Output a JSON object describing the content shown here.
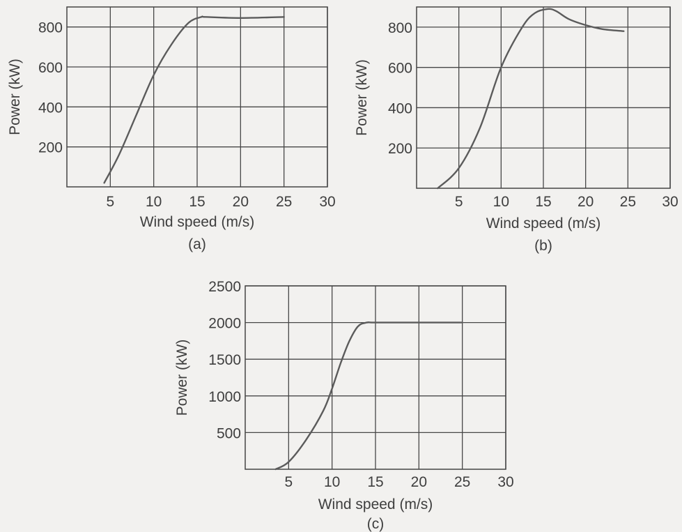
{
  "chart_data": [
    {
      "type": "line",
      "caption": "(a)",
      "xlabel": "Wind speed (m/s)",
      "ylabel": "Power (kW)",
      "xlim": [
        0,
        30
      ],
      "ylim": [
        0,
        900
      ],
      "xticks": [
        5,
        10,
        15,
        20,
        25,
        30
      ],
      "yticks": [
        200,
        400,
        600,
        800
      ],
      "grid": true,
      "series": [
        {
          "x": [
            4.3,
            6,
            8,
            10,
            12,
            14,
            15.5,
            16,
            20,
            25
          ],
          "y": [
            20,
            160,
            360,
            560,
            710,
            820,
            850,
            850,
            845,
            850
          ]
        }
      ]
    },
    {
      "type": "line",
      "caption": "(b)",
      "xlabel": "Wind speed (m/s)",
      "ylabel": "Power (kW)",
      "xlim": [
        0,
        30
      ],
      "ylim": [
        0,
        900
      ],
      "xticks": [
        5,
        10,
        15,
        20,
        25,
        30
      ],
      "yticks": [
        200,
        400,
        600,
        800
      ],
      "grid": true,
      "series": [
        {
          "x": [
            2.5,
            5,
            7.5,
            10,
            12.5,
            14,
            15.5,
            16.5,
            18,
            20,
            22,
            24.5
          ],
          "y": [
            0,
            100,
            300,
            600,
            800,
            870,
            890,
            880,
            840,
            810,
            790,
            780
          ]
        }
      ]
    },
    {
      "type": "line",
      "caption": "(c)",
      "xlabel": "Wind speed (m/s)",
      "ylabel": "Power (kW)",
      "xlim": [
        0,
        30
      ],
      "ylim": [
        0,
        2500
      ],
      "xticks": [
        5,
        10,
        15,
        20,
        25,
        30
      ],
      "yticks": [
        500,
        1000,
        1500,
        2000,
        2500
      ],
      "grid": true,
      "series": [
        {
          "x": [
            3.5,
            5,
            7,
            9,
            10,
            11,
            12,
            13,
            14,
            15,
            20,
            25
          ],
          "y": [
            0,
            100,
            400,
            800,
            1100,
            1450,
            1750,
            1950,
            2000,
            2000,
            2000,
            2000
          ]
        }
      ]
    }
  ]
}
